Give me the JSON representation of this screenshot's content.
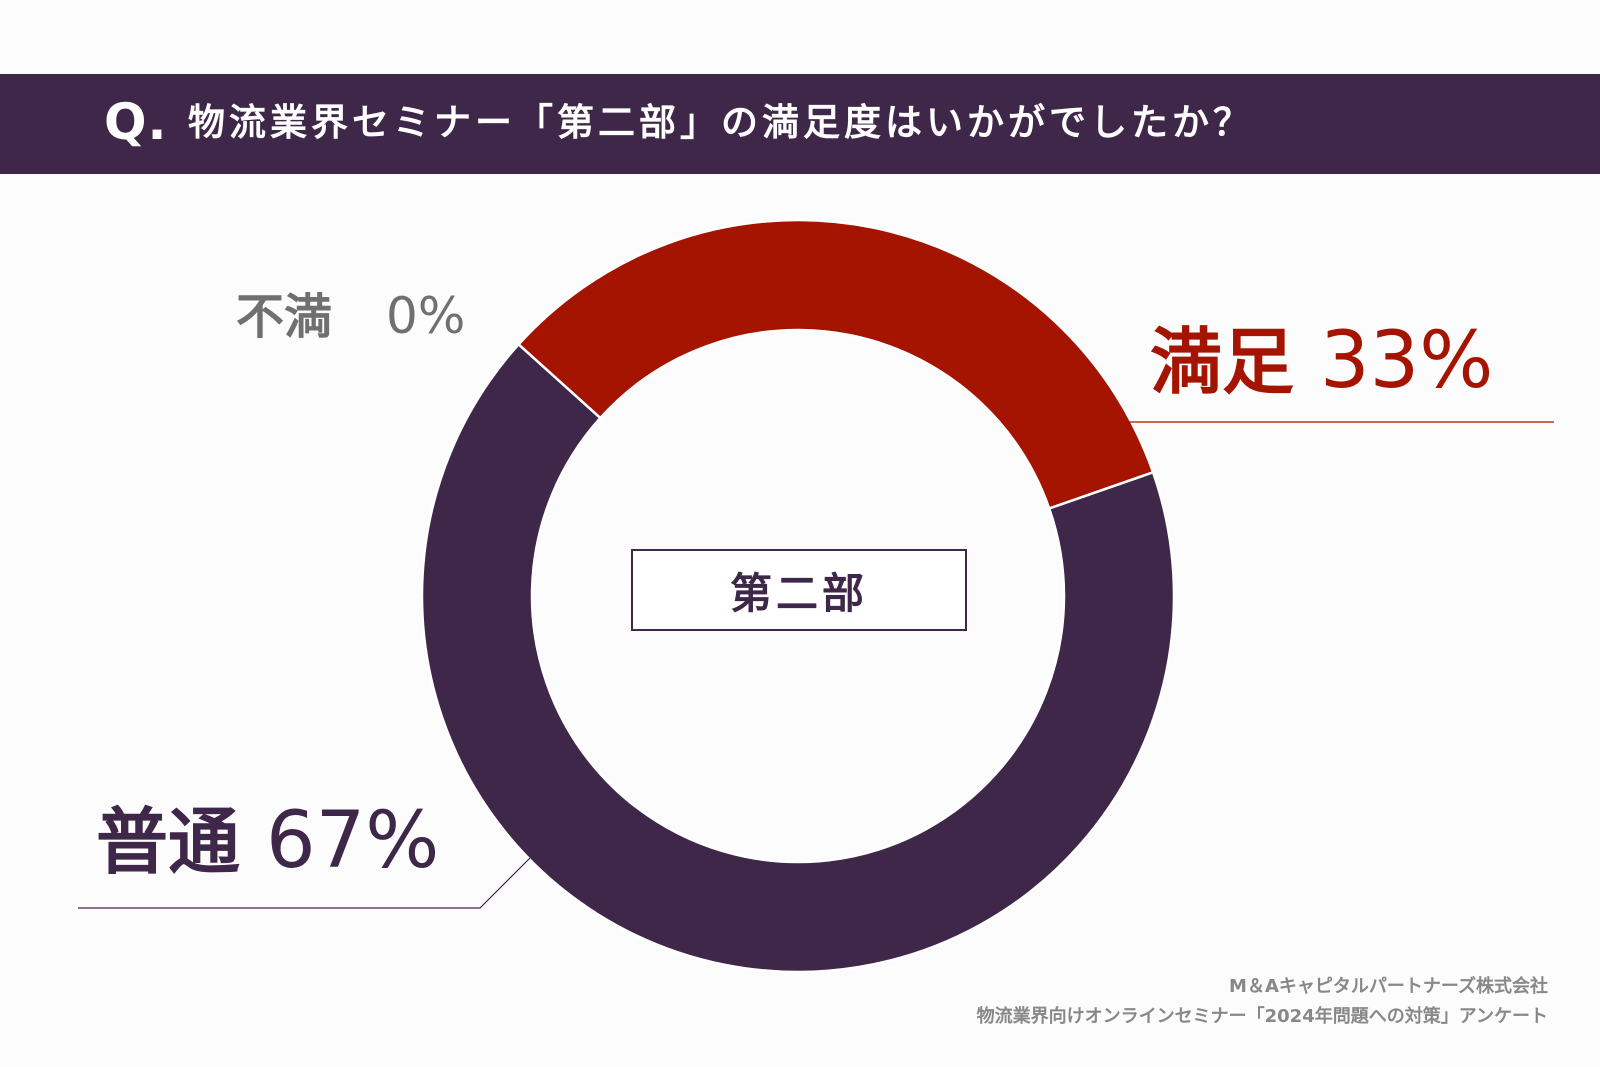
{
  "header": {
    "q_mark": "Q.",
    "question": "物流業界セミナー「第二部」の満足度はいかがでしたか？"
  },
  "colors": {
    "header_bg": "#3e2748",
    "satisfied": "#a41400",
    "normal": "#3e2748",
    "unsatisfied": "#707070"
  },
  "chart_data": {
    "type": "pie",
    "title": "物流業界セミナー「第二部」の満足度はいかがでしたか？",
    "center_label": "第二部",
    "slices": [
      {
        "label": "満足",
        "value": 33,
        "value_text": "33%"
      },
      {
        "label": "普通",
        "value": 67,
        "value_text": "67%"
      },
      {
        "label": "不満",
        "value": 0,
        "value_text": "0%"
      }
    ]
  },
  "source": {
    "line1": "M＆Aキャピタルパートナーズ株式会社",
    "line2": "物流業界向けオンラインセミナー「2024年問題への対策」アンケート"
  }
}
